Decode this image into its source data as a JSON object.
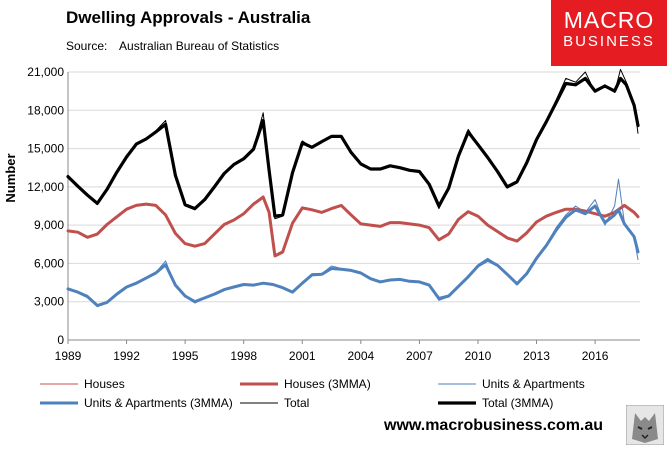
{
  "header": {
    "title": "Dwelling Approvals - Australia",
    "source_label": "Source:",
    "source_text": "Australian Bureau of Statistics"
  },
  "logo": {
    "line1": "MACRO",
    "line2": "BUSINESS"
  },
  "footer": {
    "website": "www.macrobusiness.com.au"
  },
  "colors": {
    "houses": "#c0504d",
    "units": "#4f81bd",
    "total": "#000000",
    "grid": "#d9d9d9",
    "logo": "#e51d22"
  },
  "chart_data": {
    "type": "line",
    "title": "Dwelling Approvals - Australia",
    "xlabel": "",
    "ylabel": "Number",
    "xlim": [
      1989,
      2018.3
    ],
    "ylim": [
      0,
      21000
    ],
    "xticks": [
      1989,
      1992,
      1995,
      1998,
      2001,
      2004,
      2007,
      2010,
      2013,
      2016
    ],
    "xtick_labels": [
      "1989",
      "1992",
      "1995",
      "1998",
      "2001",
      "2004",
      "2007",
      "2010",
      "2013",
      "2016"
    ],
    "yticks": [
      0,
      3000,
      6000,
      9000,
      12000,
      15000,
      18000,
      21000
    ],
    "ytick_labels": [
      "0",
      "3,000",
      "6,000",
      "9,000",
      "12,000",
      "15,000",
      "18,000",
      "21,000"
    ],
    "grid": true,
    "legend_position": "bottom",
    "series": [
      {
        "name": "Houses",
        "key": "houses",
        "width": 1,
        "x": [
          1989,
          1989.5,
          1990,
          1990.5,
          1991,
          1991.5,
          1992,
          1992.5,
          1993,
          1993.5,
          1994,
          1994.5,
          1995,
          1995.5,
          1996,
          1996.5,
          1997,
          1997.5,
          1998,
          1998.5,
          1999,
          1999.3,
          1999.6,
          2000,
          2000.5,
          2001,
          2001.5,
          2002,
          2002.5,
          2003,
          2003.5,
          2004,
          2004.5,
          2005,
          2005.5,
          2006,
          2006.5,
          2007,
          2007.5,
          2008,
          2008.5,
          2009,
          2009.5,
          2010,
          2010.5,
          2011,
          2011.5,
          2012,
          2012.5,
          2013,
          2013.5,
          2014,
          2014.5,
          2015,
          2015.5,
          2016,
          2016.5,
          2017,
          2017.5,
          2018,
          2018.2
        ],
        "values": [
          8600,
          8500,
          8000,
          8300,
          9100,
          9700,
          10300,
          10600,
          10700,
          10600,
          9800,
          8300,
          7500,
          7300,
          7500,
          8300,
          9100,
          9400,
          9900,
          10700,
          11300,
          10100,
          6500,
          6800,
          9200,
          10400,
          10200,
          10000,
          10300,
          10600,
          9800,
          9100,
          9000,
          8900,
          9200,
          9200,
          9100,
          9000,
          8800,
          7800,
          8300,
          9500,
          10100,
          9700,
          9000,
          8500,
          8000,
          7700,
          8400,
          9300,
          9700,
          10000,
          10300,
          10300,
          10100,
          9900,
          9700,
          10000,
          10600,
          10000,
          9600
        ]
      },
      {
        "name": "Houses (3MMA)",
        "key": "houses",
        "width": 3,
        "x": [
          1989,
          1989.5,
          1990,
          1990.5,
          1991,
          1991.5,
          1992,
          1992.5,
          1993,
          1993.5,
          1994,
          1994.5,
          1995,
          1995.5,
          1996,
          1996.5,
          1997,
          1997.5,
          1998,
          1998.5,
          1999,
          1999.3,
          1999.6,
          2000,
          2000.5,
          2001,
          2001.5,
          2002,
          2002.5,
          2003,
          2003.5,
          2004,
          2004.5,
          2005,
          2005.5,
          2006,
          2006.5,
          2007,
          2007.5,
          2008,
          2008.5,
          2009,
          2009.5,
          2010,
          2010.5,
          2011,
          2011.5,
          2012,
          2012.5,
          2013,
          2013.5,
          2014,
          2014.5,
          2015,
          2015.5,
          2016,
          2016.5,
          2017,
          2017.5,
          2018,
          2018.2
        ],
        "values": [
          8550,
          8450,
          8050,
          8300,
          9050,
          9650,
          10250,
          10550,
          10650,
          10550,
          9800,
          8350,
          7550,
          7350,
          7550,
          8300,
          9050,
          9400,
          9900,
          10650,
          11200,
          10000,
          6600,
          6900,
          9150,
          10350,
          10200,
          10000,
          10300,
          10550,
          9800,
          9100,
          9000,
          8900,
          9200,
          9200,
          9100,
          9000,
          8800,
          7850,
          8300,
          9450,
          10050,
          9700,
          9000,
          8500,
          8000,
          7750,
          8400,
          9250,
          9700,
          10000,
          10250,
          10250,
          10100,
          9900,
          9700,
          10000,
          10550,
          10000,
          9650
        ]
      },
      {
        "name": "Units & Apartments",
        "key": "units",
        "width": 1,
        "x": [
          1989,
          1989.5,
          1990,
          1990.5,
          1991,
          1991.5,
          1992,
          1992.5,
          1993,
          1993.5,
          1994,
          1994.5,
          1995,
          1995.5,
          1996,
          1996.5,
          1997,
          1997.5,
          1998,
          1998.5,
          1999,
          1999.5,
          2000,
          2000.5,
          2001,
          2001.5,
          2002,
          2002.5,
          2003,
          2003.5,
          2004,
          2004.5,
          2005,
          2005.5,
          2006,
          2006.5,
          2007,
          2007.5,
          2008,
          2008.5,
          2009,
          2009.5,
          2010,
          2010.5,
          2011,
          2011.5,
          2012,
          2012.5,
          2013,
          2013.5,
          2014,
          2014.5,
          2015,
          2015.5,
          2016,
          2016.5,
          2017,
          2017.2,
          2017.5,
          2018,
          2018.2
        ],
        "values": [
          4100,
          3800,
          3500,
          2600,
          2900,
          3600,
          4200,
          4500,
          4900,
          5300,
          6200,
          4200,
          3400,
          2900,
          3300,
          3600,
          4000,
          4200,
          4400,
          4300,
          4500,
          4400,
          4100,
          3700,
          4500,
          5200,
          5200,
          5800,
          5600,
          5500,
          5300,
          4800,
          4500,
          4700,
          4800,
          4600,
          4600,
          4300,
          3100,
          3400,
          4200,
          5000,
          5900,
          6400,
          5900,
          5100,
          4300,
          5200,
          6500,
          7500,
          8800,
          9800,
          10500,
          10000,
          11000,
          9000,
          10500,
          12600,
          9200,
          8000,
          6300
        ]
      },
      {
        "name": "Units & Apartments (3MMA)",
        "key": "units",
        "width": 3,
        "x": [
          1989,
          1989.5,
          1990,
          1990.5,
          1991,
          1991.5,
          1992,
          1992.5,
          1993,
          1993.5,
          1994,
          1994.5,
          1995,
          1995.5,
          1996,
          1996.5,
          1997,
          1997.5,
          1998,
          1998.5,
          1999,
          1999.5,
          2000,
          2000.5,
          2001,
          2001.5,
          2002,
          2002.5,
          2003,
          2003.5,
          2004,
          2004.5,
          2005,
          2005.5,
          2006,
          2006.5,
          2007,
          2007.5,
          2008,
          2008.5,
          2009,
          2009.5,
          2010,
          2010.5,
          2011,
          2011.5,
          2012,
          2012.5,
          2013,
          2013.5,
          2014,
          2014.5,
          2015,
          2015.5,
          2016,
          2016.5,
          2017,
          2017.2,
          2017.5,
          2018,
          2018.2
        ],
        "values": [
          4000,
          3750,
          3400,
          2700,
          2950,
          3600,
          4150,
          4450,
          4850,
          5250,
          5900,
          4300,
          3450,
          3000,
          3300,
          3600,
          3950,
          4150,
          4350,
          4300,
          4450,
          4350,
          4100,
          3750,
          4450,
          5100,
          5150,
          5600,
          5550,
          5450,
          5250,
          4800,
          4550,
          4700,
          4750,
          4600,
          4550,
          4300,
          3250,
          3450,
          4200,
          4950,
          5800,
          6250,
          5850,
          5150,
          4400,
          5200,
          6400,
          7400,
          8600,
          9600,
          10200,
          9900,
          10500,
          9200,
          9800,
          10200,
          9100,
          8100,
          6900
        ]
      },
      {
        "name": "Total",
        "key": "total",
        "width": 1,
        "x": [
          1989,
          1989.5,
          1990,
          1990.5,
          1991,
          1991.5,
          1992,
          1992.5,
          1993,
          1993.5,
          1994,
          1994.5,
          1995,
          1995.5,
          1996,
          1996.5,
          1997,
          1997.5,
          1998,
          1998.5,
          1999,
          1999.3,
          1999.6,
          2000,
          2000.5,
          2001,
          2001.5,
          2002,
          2002.5,
          2003,
          2003.5,
          2004,
          2004.5,
          2005,
          2005.5,
          2006,
          2006.5,
          2007,
          2007.5,
          2008,
          2008.5,
          2009,
          2009.5,
          2010,
          2010.5,
          2011,
          2011.5,
          2012,
          2012.5,
          2013,
          2013.5,
          2014,
          2014.5,
          2015,
          2015.5,
          2016,
          2016.5,
          2017,
          2017.3,
          2017.6,
          2018,
          2018.2
        ],
        "values": [
          12900,
          12100,
          11400,
          10600,
          11800,
          13200,
          14400,
          15400,
          15800,
          16400,
          17200,
          12700,
          10500,
          10200,
          11000,
          12000,
          13100,
          13800,
          14200,
          15000,
          17800,
          13500,
          9500,
          9700,
          13200,
          15600,
          15100,
          15600,
          16000,
          16000,
          14700,
          13800,
          13400,
          13400,
          13700,
          13500,
          13300,
          13200,
          12200,
          10300,
          11900,
          14500,
          16500,
          15300,
          14300,
          13200,
          11900,
          12300,
          13900,
          15800,
          17200,
          18800,
          20500,
          20200,
          21000,
          19400,
          20000,
          19400,
          21200,
          20200,
          18500,
          16200
        ]
      },
      {
        "name": "Total (3MMA)",
        "key": "total",
        "width": 3.2,
        "x": [
          1989,
          1989.5,
          1990,
          1990.5,
          1991,
          1991.5,
          1992,
          1992.5,
          1993,
          1993.5,
          1994,
          1994.5,
          1995,
          1995.5,
          1996,
          1996.5,
          1997,
          1997.5,
          1998,
          1998.5,
          1999,
          1999.3,
          1999.6,
          2000,
          2000.5,
          2001,
          2001.5,
          2002,
          2002.5,
          2003,
          2003.5,
          2004,
          2004.5,
          2005,
          2005.5,
          2006,
          2006.5,
          2007,
          2007.5,
          2008,
          2008.5,
          2009,
          2009.5,
          2010,
          2010.5,
          2011,
          2011.5,
          2012,
          2012.5,
          2013,
          2013.5,
          2014,
          2014.5,
          2015,
          2015.5,
          2016,
          2016.5,
          2017,
          2017.3,
          2017.6,
          2018,
          2018.2
        ],
        "values": [
          12800,
          12050,
          11350,
          10700,
          11800,
          13150,
          14350,
          15350,
          15750,
          16300,
          16900,
          12900,
          10600,
          10300,
          11000,
          12000,
          13050,
          13750,
          14200,
          14950,
          17200,
          13300,
          9700,
          9800,
          13100,
          15450,
          15100,
          15550,
          15950,
          15950,
          14700,
          13800,
          13400,
          13400,
          13650,
          13500,
          13300,
          13200,
          12200,
          10500,
          11900,
          14400,
          16300,
          15300,
          14300,
          13200,
          12000,
          12400,
          13900,
          15700,
          17100,
          18600,
          20100,
          20000,
          20500,
          19500,
          19900,
          19500,
          20500,
          20000,
          18400,
          16800
        ]
      }
    ]
  }
}
